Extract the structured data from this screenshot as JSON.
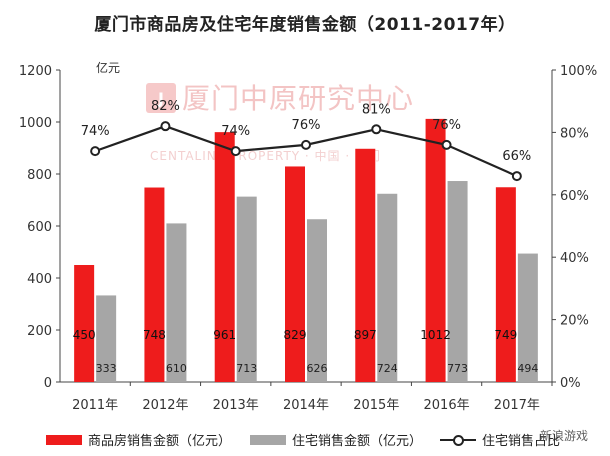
{
  "title": "厦门市商品房及住宅年度销售金额（2011-2017年）",
  "watermark": {
    "main": "厦门中原研究中心",
    "sub": "CENTALINE PROPERTY · 中国 · 厦门",
    "brand": "新浪游戏"
  },
  "colors": {
    "commercial": "#ee1c1c",
    "residential": "#a6a6a6",
    "line": "#222222"
  },
  "chart_data": {
    "type": "bar",
    "categories": [
      "2011年",
      "2012年",
      "2013年",
      "2014年",
      "2015年",
      "2016年",
      "2017年"
    ],
    "series": [
      {
        "name": "商品房销售金额（亿元）",
        "type": "bar",
        "axis": "left",
        "values": [
          450,
          748,
          961,
          829,
          897,
          1012,
          749
        ]
      },
      {
        "name": "住宅销售金额（亿元）",
        "type": "bar",
        "axis": "left",
        "values": [
          333,
          610,
          713,
          626,
          724,
          773,
          494
        ]
      },
      {
        "name": "住宅销售占比",
        "type": "line",
        "axis": "right",
        "values": [
          74,
          82,
          74,
          76,
          81,
          76,
          66
        ]
      }
    ],
    "left_axis": {
      "unit_label": "亿元",
      "ylim": [
        0,
        1200
      ],
      "ticks": [
        0,
        200,
        400,
        600,
        800,
        1000,
        1200
      ]
    },
    "right_axis": {
      "ylim": [
        0,
        100
      ],
      "ticks": [
        0,
        20,
        40,
        60,
        80,
        100
      ],
      "suffix": "%"
    },
    "grid": false,
    "legend_position": "bottom"
  }
}
